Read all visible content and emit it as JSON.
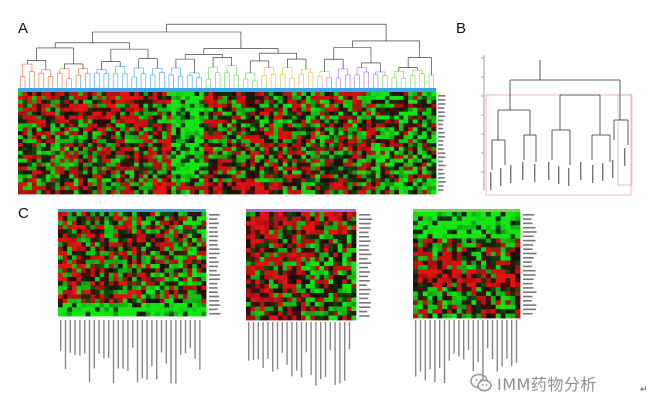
{
  "panels": {
    "a": "A",
    "b": "B",
    "c": "C"
  },
  "heatmap_colors": {
    "high": "#d01212",
    "low": "#1bd31b",
    "mid": "#0d0d0d"
  },
  "cluster_colors": [
    "#e0703a",
    "#3aa5e0",
    "#3aa5e0",
    "#5bd65b",
    "#e0b84a",
    "#a970d8",
    "#6fd84a"
  ],
  "watermark": {
    "text": "IMM药物分析",
    "icon": "wechat-icon"
  },
  "footer_arrow": "↵"
}
